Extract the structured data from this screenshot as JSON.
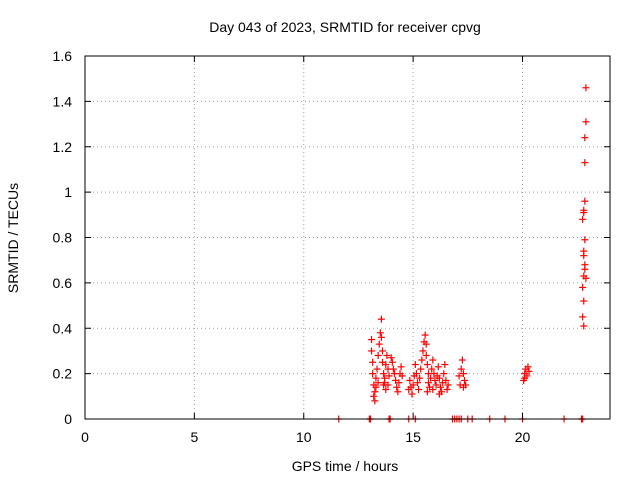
{
  "chart_data": {
    "type": "scatter",
    "title": "Day 043 of 2023, SRMTID for receiver cpvg",
    "xlabel": "GPS time / hours",
    "ylabel": "SRMTID / TECUs",
    "xlim": [
      0,
      24
    ],
    "ylim": [
      0,
      1.6
    ],
    "xticks": [
      0,
      5,
      10,
      15,
      20
    ],
    "yticks": [
      0,
      0.2,
      0.4,
      0.6,
      0.8,
      1,
      1.2,
      1.4,
      1.6
    ],
    "xtick_labels": [
      "0",
      "5",
      "10",
      "15",
      "20"
    ],
    "ytick_labels": [
      "0",
      "0.2",
      "0.4",
      "0.6",
      "0.8",
      "1",
      "1.2",
      "1.4",
      "1.6"
    ],
    "grid": true,
    "marker": "+",
    "marker_color": "#ff0000",
    "series": [
      {
        "name": "SRMTID",
        "points": [
          [
            11.6,
            0.0
          ],
          [
            13.0,
            0.0
          ],
          [
            13.05,
            0.0
          ],
          [
            13.9,
            0.0
          ],
          [
            13.95,
            0.0
          ],
          [
            14.8,
            0.0
          ],
          [
            15.1,
            0.0
          ],
          [
            16.8,
            0.0
          ],
          [
            16.9,
            0.0
          ],
          [
            17.0,
            0.0
          ],
          [
            17.1,
            0.0
          ],
          [
            17.2,
            0.0
          ],
          [
            17.5,
            0.0
          ],
          [
            17.7,
            0.0
          ],
          [
            18.5,
            0.0
          ],
          [
            19.2,
            0.0
          ],
          [
            20.0,
            0.0
          ],
          [
            21.9,
            0.0
          ],
          [
            22.7,
            0.0
          ],
          [
            22.75,
            0.0
          ],
          [
            13.1,
            0.35
          ],
          [
            13.1,
            0.3
          ],
          [
            13.15,
            0.25
          ],
          [
            13.15,
            0.2
          ],
          [
            13.2,
            0.15
          ],
          [
            13.2,
            0.1
          ],
          [
            13.25,
            0.08
          ],
          [
            13.25,
            0.12
          ],
          [
            13.3,
            0.18
          ],
          [
            13.35,
            0.22
          ],
          [
            13.4,
            0.28
          ],
          [
            13.45,
            0.33
          ],
          [
            13.5,
            0.38
          ],
          [
            13.55,
            0.44
          ],
          [
            13.55,
            0.36
          ],
          [
            13.6,
            0.3
          ],
          [
            13.6,
            0.25
          ],
          [
            13.65,
            0.2
          ],
          [
            13.65,
            0.15
          ],
          [
            13.7,
            0.18
          ],
          [
            13.75,
            0.24
          ],
          [
            13.8,
            0.28
          ],
          [
            13.85,
            0.22
          ],
          [
            13.9,
            0.19
          ],
          [
            14.0,
            0.27
          ],
          [
            14.05,
            0.25
          ],
          [
            14.1,
            0.22
          ],
          [
            14.15,
            0.2
          ],
          [
            14.2,
            0.17
          ],
          [
            14.25,
            0.14
          ],
          [
            14.3,
            0.12
          ],
          [
            14.35,
            0.16
          ],
          [
            14.4,
            0.2
          ],
          [
            14.45,
            0.23
          ],
          [
            14.5,
            0.19
          ],
          [
            13.7,
            0.16
          ],
          [
            13.75,
            0.13
          ],
          [
            13.85,
            0.15
          ],
          [
            13.4,
            0.16
          ],
          [
            13.3,
            0.14
          ],
          [
            14.8,
            0.13
          ],
          [
            14.85,
            0.17
          ],
          [
            14.9,
            0.14
          ],
          [
            14.95,
            0.11
          ],
          [
            15.0,
            0.15
          ],
          [
            15.05,
            0.19
          ],
          [
            15.1,
            0.24
          ],
          [
            15.15,
            0.2
          ],
          [
            15.2,
            0.16
          ],
          [
            15.25,
            0.13
          ],
          [
            15.3,
            0.18
          ],
          [
            15.35,
            0.22
          ],
          [
            15.4,
            0.26
          ],
          [
            15.45,
            0.3
          ],
          [
            15.5,
            0.34
          ],
          [
            15.55,
            0.37
          ],
          [
            15.6,
            0.33
          ],
          [
            15.6,
            0.28
          ],
          [
            15.65,
            0.24
          ],
          [
            15.7,
            0.2
          ],
          [
            15.7,
            0.16
          ],
          [
            15.75,
            0.14
          ],
          [
            15.8,
            0.18
          ],
          [
            15.85,
            0.22
          ],
          [
            15.9,
            0.26
          ],
          [
            15.95,
            0.2
          ],
          [
            16.0,
            0.17
          ],
          [
            16.05,
            0.15
          ],
          [
            16.1,
            0.19
          ],
          [
            16.15,
            0.23
          ],
          [
            16.2,
            0.18
          ],
          [
            16.25,
            0.14
          ],
          [
            16.3,
            0.12
          ],
          [
            16.35,
            0.16
          ],
          [
            16.4,
            0.2
          ],
          [
            16.45,
            0.24
          ],
          [
            16.5,
            0.17
          ],
          [
            16.55,
            0.13
          ],
          [
            16.6,
            0.15
          ],
          [
            15.65,
            0.12
          ],
          [
            15.9,
            0.13
          ],
          [
            16.2,
            0.11
          ],
          [
            17.1,
            0.19
          ],
          [
            17.15,
            0.15
          ],
          [
            17.2,
            0.22
          ],
          [
            17.25,
            0.26
          ],
          [
            17.3,
            0.2
          ],
          [
            17.35,
            0.17
          ],
          [
            17.4,
            0.15
          ],
          [
            17.3,
            0.14
          ],
          [
            20.05,
            0.17
          ],
          [
            20.1,
            0.2
          ],
          [
            20.15,
            0.22
          ],
          [
            20.2,
            0.19
          ],
          [
            20.25,
            0.23
          ],
          [
            20.3,
            0.21
          ],
          [
            20.1,
            0.18
          ],
          [
            22.75,
            0.45
          ],
          [
            22.8,
            0.52
          ],
          [
            22.75,
            0.58
          ],
          [
            22.8,
            0.63
          ],
          [
            22.85,
            0.68
          ],
          [
            22.8,
            0.72
          ],
          [
            22.85,
            0.79
          ],
          [
            22.75,
            0.88
          ],
          [
            22.8,
            0.92
          ],
          [
            22.85,
            0.96
          ],
          [
            22.8,
            0.91
          ],
          [
            22.85,
            1.13
          ],
          [
            22.85,
            1.24
          ],
          [
            22.9,
            1.31
          ],
          [
            22.9,
            1.46
          ],
          [
            22.8,
            0.41
          ],
          [
            22.85,
            0.66
          ],
          [
            22.8,
            0.74
          ],
          [
            22.9,
            0.62
          ]
        ]
      }
    ]
  }
}
